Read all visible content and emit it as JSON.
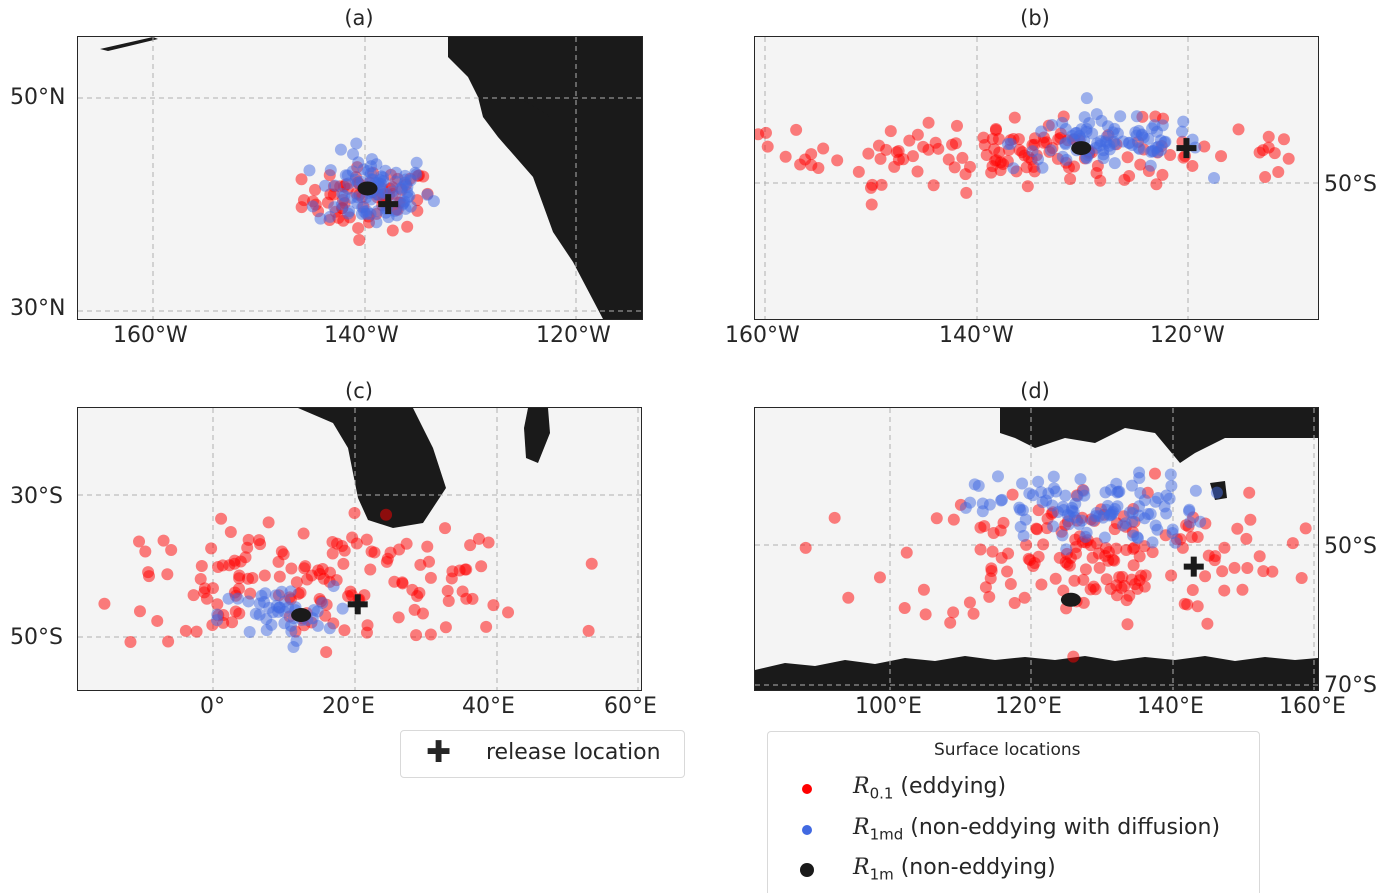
{
  "chart_data": [
    {
      "type": "scatter",
      "title": "(a)",
      "x_ticks": [
        "160°W",
        "140°W",
        "120°W"
      ],
      "y_ticks": [
        "50°N",
        "30°N"
      ],
      "lon_range": [
        -173,
        -113
      ],
      "lat_range": [
        29,
        56
      ],
      "release_location": [
        -140,
        40
      ],
      "series": [
        {
          "name": "R0.1 (eddying)",
          "color": "#ff0000",
          "center": [
            -142,
            40.5
          ],
          "spread": [
            3.5,
            1.5
          ],
          "count": 70
        },
        {
          "name": "R1md (non-eddying with diffusion)",
          "color": "#4169e1",
          "center": [
            -141.5,
            41.3
          ],
          "spread": [
            3,
            1.8
          ],
          "count": 90
        },
        {
          "name": "R1m (non-eddying)",
          "color": "#1a1a1a",
          "points": [
            [
              -142.2,
              41.5
            ]
          ]
        }
      ]
    },
    {
      "type": "scatter",
      "title": "(b)",
      "x_ticks": [
        "160°W",
        "140°W",
        "120°W"
      ],
      "y_ticks": [
        "50°S"
      ],
      "lon_range": [
        -160.5,
        -107
      ],
      "lat_range": [
        -70,
        -37
      ],
      "release_location": [
        -119.5,
        -50
      ],
      "series": [
        {
          "name": "R0.1 (eddying)",
          "color": "#ff0000",
          "center": [
            -135,
            -50.5
          ],
          "spread": [
            14,
            1.8
          ],
          "count": 150
        },
        {
          "name": "R1md (non-eddying with diffusion)",
          "color": "#4169e1",
          "center": [
            -127,
            -49.4
          ],
          "spread": [
            4.5,
            1.6
          ],
          "count": 90
        },
        {
          "name": "R1m (non-eddying)",
          "color": "#1a1a1a",
          "points": [
            [
              -129.5,
              -50
            ]
          ]
        }
      ]
    },
    {
      "type": "scatter",
      "title": "(c)",
      "x_ticks": [
        "0°",
        "20°E",
        "40°E",
        "60°E"
      ],
      "y_ticks": [
        "30°S",
        "50°S"
      ],
      "lon_range": [
        -19,
        60.5
      ],
      "lat_range": [
        -57,
        -17.5
      ],
      "release_location": [
        20.5,
        -45
      ],
      "series": [
        {
          "name": "R0.1 (eddying)",
          "color": "#ff0000",
          "center": [
            15,
            -42
          ],
          "spread": [
            16,
            4
          ],
          "count": 160
        },
        {
          "name": "R1md (non-eddying with diffusion)",
          "color": "#4169e1",
          "center": [
            9,
            -46.5
          ],
          "spread": [
            4,
            2
          ],
          "count": 45
        },
        {
          "name": "R1m (non-eddying)",
          "color": "#1a1a1a",
          "points": [
            [
              12.5,
              -46.5
            ]
          ]
        }
      ]
    },
    {
      "type": "scatter",
      "title": "(d)",
      "x_ticks": [
        "100°E",
        "120°E",
        "140°E",
        "160°E"
      ],
      "y_ticks": [
        "50°S",
        "70°S"
      ],
      "lon_range": [
        80,
        160.2
      ],
      "lat_range": [
        -70,
        -30
      ],
      "release_location": [
        142.5,
        -52.5
      ],
      "series": [
        {
          "name": "R0.1 (eddying)",
          "color": "#ff0000",
          "center": [
            128,
            -51
          ],
          "spread": [
            14,
            5
          ],
          "count": 170
        },
        {
          "name": "R1md (non-eddying with diffusion)",
          "color": "#4169e1",
          "center": [
            128,
            -44.5
          ],
          "spread": [
            8,
            2.5
          ],
          "count": 110
        },
        {
          "name": "R1m (non-eddying)",
          "color": "#1a1a1a",
          "points": [
            [
              125,
              -57.2
            ]
          ]
        }
      ]
    }
  ],
  "legend_release": {
    "label": "release location"
  },
  "legend_surface": {
    "title": "Surface locations",
    "items": [
      {
        "symbol": "R",
        "sub": "0.1",
        "text": " (eddying)",
        "color": "#ff0000"
      },
      {
        "symbol": "R",
        "sub": "1md",
        "text": " (non-eddying with diffusion)",
        "color": "#4169e1"
      },
      {
        "symbol": "R",
        "sub": "1m",
        "text": " (non-eddying)",
        "color": "#1a1a1a"
      }
    ]
  },
  "colors": {
    "land": "#1a1a1a",
    "ocean": "#f4f4f4",
    "grid": "#b0b0b0"
  }
}
